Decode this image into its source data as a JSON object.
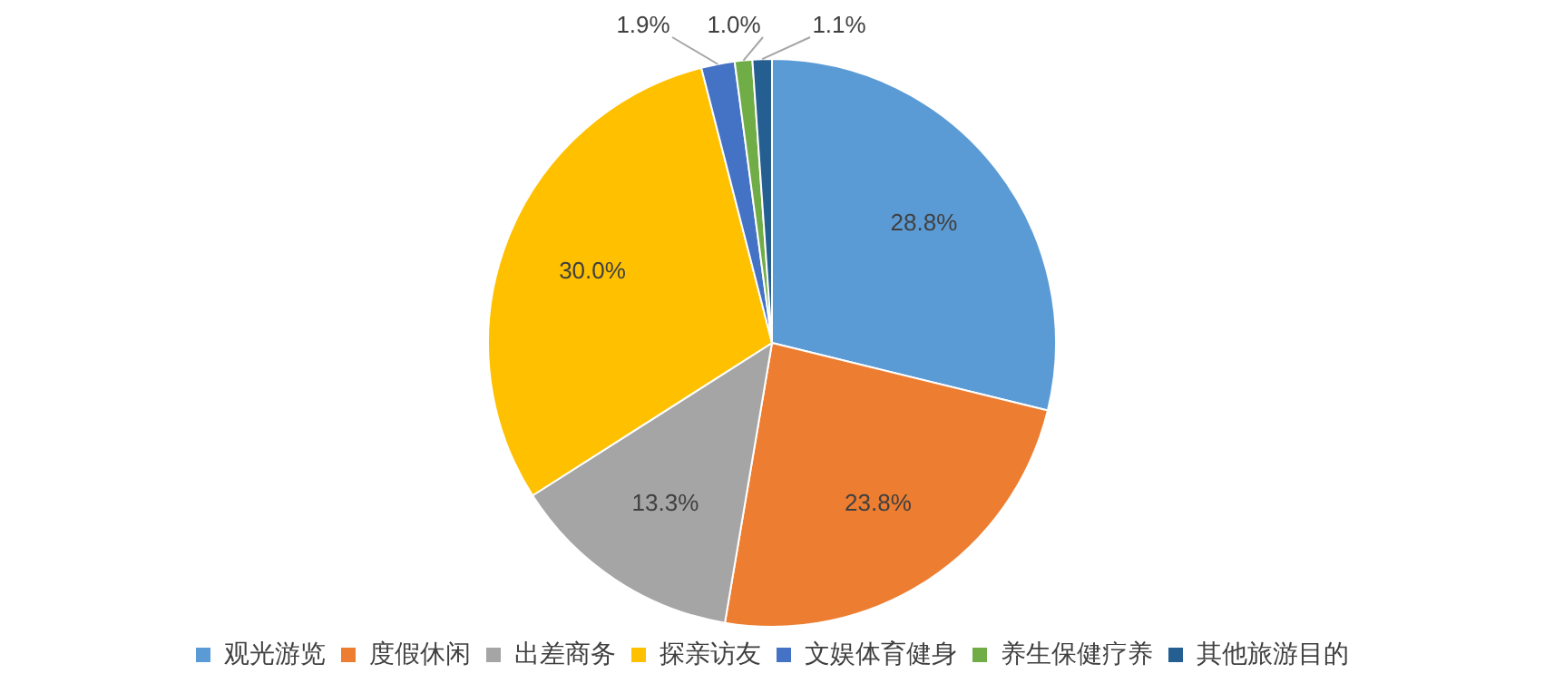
{
  "chart_data": {
    "type": "pie",
    "categories": [
      "观光游览",
      "度假休闲",
      "出差商务",
      "探亲访友",
      "文娱体育健身",
      "养生保健疗养",
      "其他旅游目的"
    ],
    "values": [
      28.8,
      23.8,
      13.3,
      30.0,
      1.9,
      1.0,
      1.1
    ],
    "colors": [
      "#5b9bd5",
      "#ed7d31",
      "#a5a5a5",
      "#ffc000",
      "#4472c4",
      "#70ad47",
      "#255e91"
    ],
    "value_labels": [
      "28.8%",
      "23.8%",
      "13.3%",
      "30.0%",
      "1.9%",
      "1.0%",
      "1.1%"
    ],
    "legend": "bottom"
  }
}
